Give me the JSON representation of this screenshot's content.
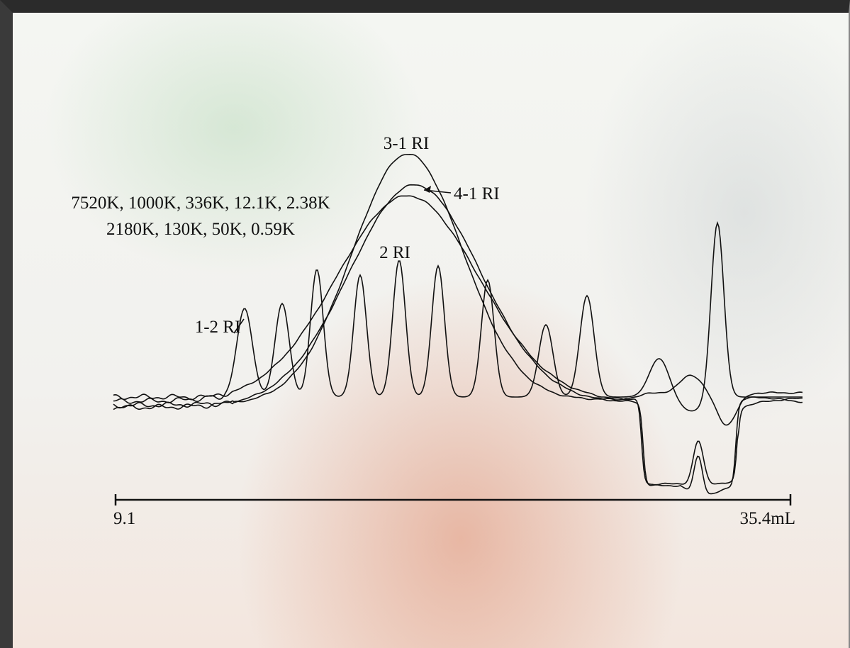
{
  "figure": {
    "standards_label": [
      "7520K, 1000K, 336K, 12.1K, 2.38K",
      "2180K, 130K, 50K, 0.59K"
    ],
    "trace_labels": [
      "3-1 RI",
      "4-1 RI",
      "2 RI",
      "1-2 RI"
    ],
    "axis": {
      "start": "9.1",
      "end": "35.4mL"
    }
  }
}
